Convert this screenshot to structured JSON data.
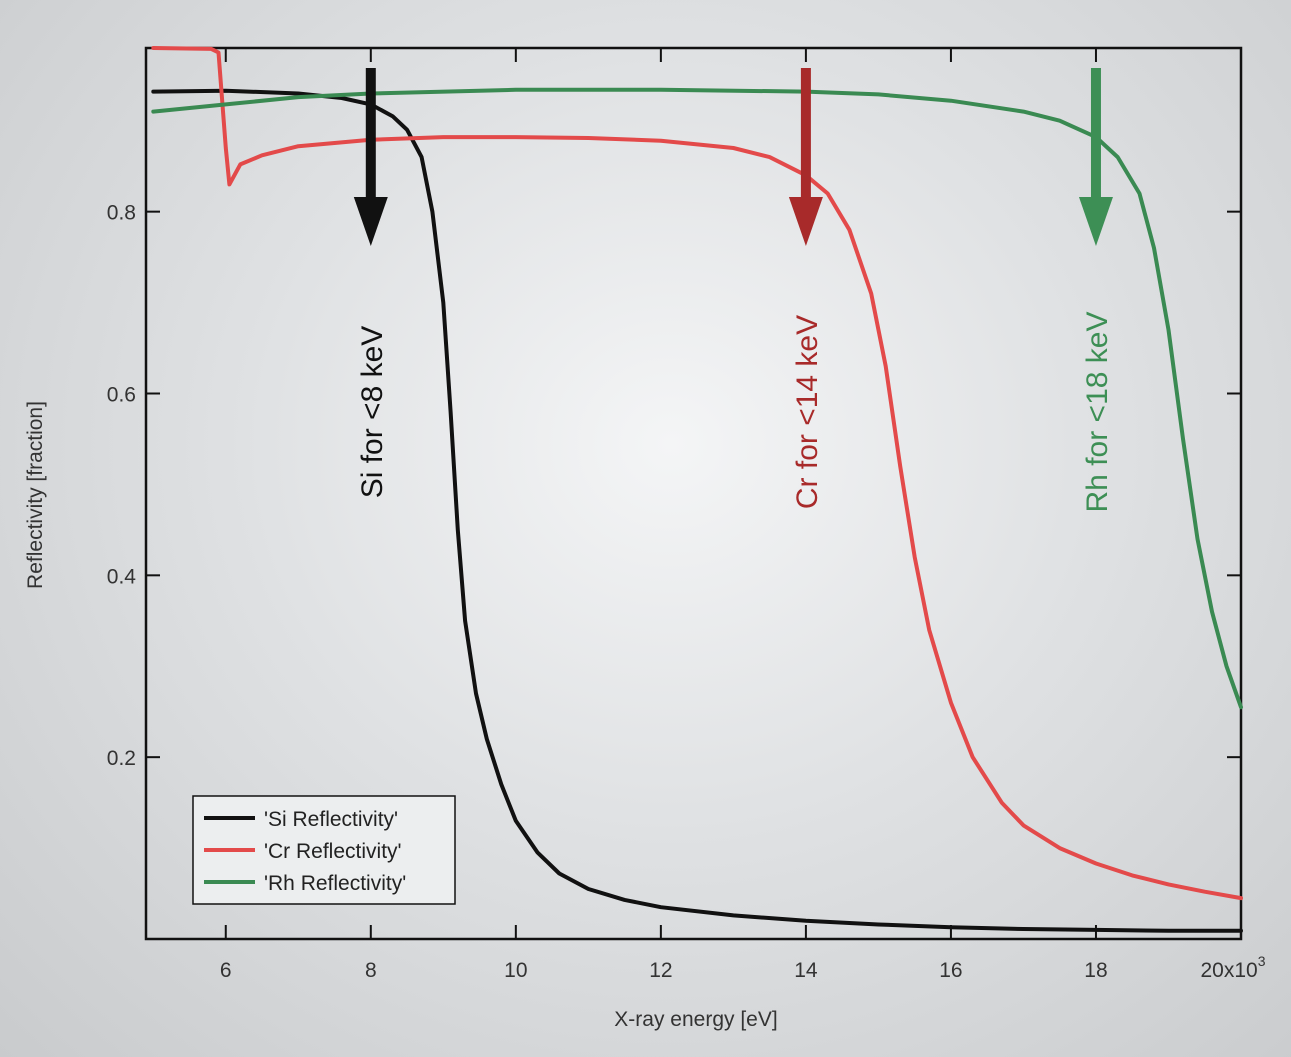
{
  "chart_data": {
    "type": "line",
    "xlabel": "X-ray energy [eV]",
    "ylabel": "Reflectivity [fraction]",
    "xlim": [
      4900,
      20000
    ],
    "ylim": [
      0.0,
      0.98
    ],
    "x_ticks": [
      6000,
      8000,
      10000,
      12000,
      14000,
      16000,
      18000,
      20000
    ],
    "x_tick_labels": [
      "6",
      "8",
      "10",
      "12",
      "14",
      "16",
      "18",
      "20x10"
    ],
    "x_exponent_label": "3",
    "y_ticks": [
      0.2,
      0.4,
      0.6,
      0.8
    ],
    "y_tick_labels": [
      "0.2",
      "0.4",
      "0.6",
      "0.8"
    ],
    "grid": false,
    "legend_position": "bottom-left",
    "series": [
      {
        "name": "'Si Reflectivity'",
        "color": "#111111",
        "x": [
          5000,
          6000,
          7000,
          7600,
          8000,
          8300,
          8500,
          8700,
          8850,
          9000,
          9100,
          9200,
          9300,
          9450,
          9600,
          9800,
          10000,
          10300,
          10600,
          11000,
          11500,
          12000,
          13000,
          14000,
          15000,
          16000,
          17000,
          18000,
          19000,
          20000
        ],
        "y": [
          0.932,
          0.933,
          0.93,
          0.925,
          0.918,
          0.905,
          0.89,
          0.86,
          0.8,
          0.7,
          0.58,
          0.45,
          0.35,
          0.27,
          0.22,
          0.17,
          0.13,
          0.095,
          0.072,
          0.055,
          0.043,
          0.035,
          0.026,
          0.02,
          0.016,
          0.013,
          0.011,
          0.01,
          0.009,
          0.009
        ]
      },
      {
        "name": "'Cr Reflectivity'",
        "color": "#e34a4a",
        "x": [
          5000,
          5800,
          5900,
          6000,
          6050,
          6200,
          6500,
          7000,
          8000,
          9000,
          10000,
          11000,
          12000,
          13000,
          13500,
          14000,
          14300,
          14600,
          14900,
          15100,
          15300,
          15500,
          15700,
          16000,
          16300,
          16700,
          17000,
          17500,
          18000,
          18500,
          19000,
          19500,
          20000
        ],
        "y": [
          0.98,
          0.979,
          0.975,
          0.87,
          0.83,
          0.852,
          0.862,
          0.872,
          0.879,
          0.882,
          0.882,
          0.881,
          0.878,
          0.87,
          0.86,
          0.84,
          0.82,
          0.78,
          0.71,
          0.63,
          0.52,
          0.42,
          0.34,
          0.26,
          0.2,
          0.15,
          0.125,
          0.1,
          0.083,
          0.07,
          0.06,
          0.052,
          0.045
        ]
      },
      {
        "name": "'Rh Reflectivity'",
        "color": "#3a8a52",
        "x": [
          5000,
          6000,
          7000,
          8000,
          10000,
          12000,
          14000,
          15000,
          16000,
          17000,
          17500,
          18000,
          18300,
          18600,
          18800,
          19000,
          19200,
          19400,
          19600,
          19800,
          20000
        ],
        "y": [
          0.91,
          0.918,
          0.926,
          0.93,
          0.934,
          0.934,
          0.932,
          0.929,
          0.922,
          0.91,
          0.9,
          0.882,
          0.86,
          0.82,
          0.76,
          0.67,
          0.55,
          0.44,
          0.36,
          0.3,
          0.255
        ]
      }
    ],
    "annotations": [
      {
        "text": "Si for <8 keV",
        "x": 8000,
        "color": "#111111"
      },
      {
        "text": "Cr for <14 keV",
        "x": 14000,
        "color": "#a82a2a"
      },
      {
        "text": "Rh for <18 keV",
        "x": 18000,
        "color": "#3d8f55"
      }
    ]
  }
}
